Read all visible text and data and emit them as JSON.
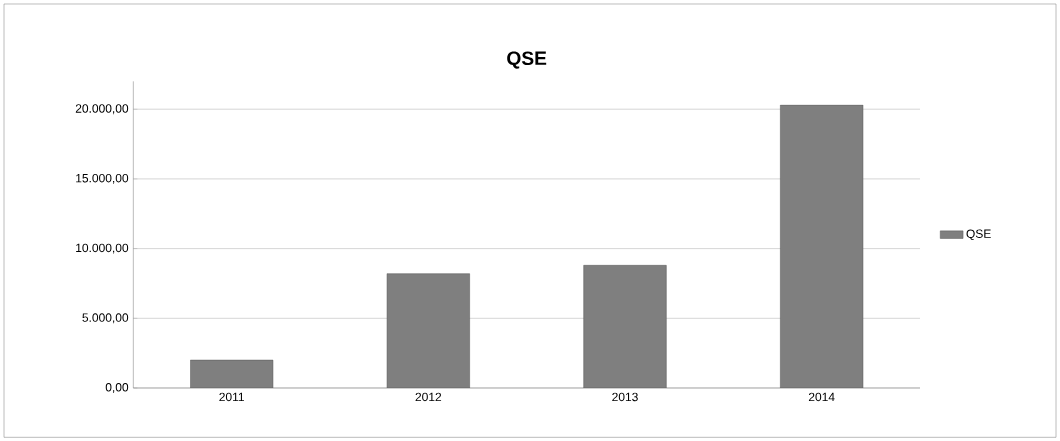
{
  "chart_data": {
    "type": "bar",
    "title": "QSE",
    "categories": [
      "2011",
      "2012",
      "2013",
      "2014"
    ],
    "series": [
      {
        "name": "QSE",
        "color": "#7f7f7f",
        "values": [
          2000,
          8200,
          8800,
          20300
        ]
      }
    ],
    "ylim": [
      0,
      22000
    ],
    "yticks": [
      {
        "value": 0,
        "label": "0,00"
      },
      {
        "value": 5000,
        "label": "5.000,00"
      },
      {
        "value": 10000,
        "label": "10.000,00"
      },
      {
        "value": 15000,
        "label": "15.000,00"
      },
      {
        "value": 20000,
        "label": "20.000,00"
      }
    ],
    "grid": "y",
    "legend": "right"
  }
}
